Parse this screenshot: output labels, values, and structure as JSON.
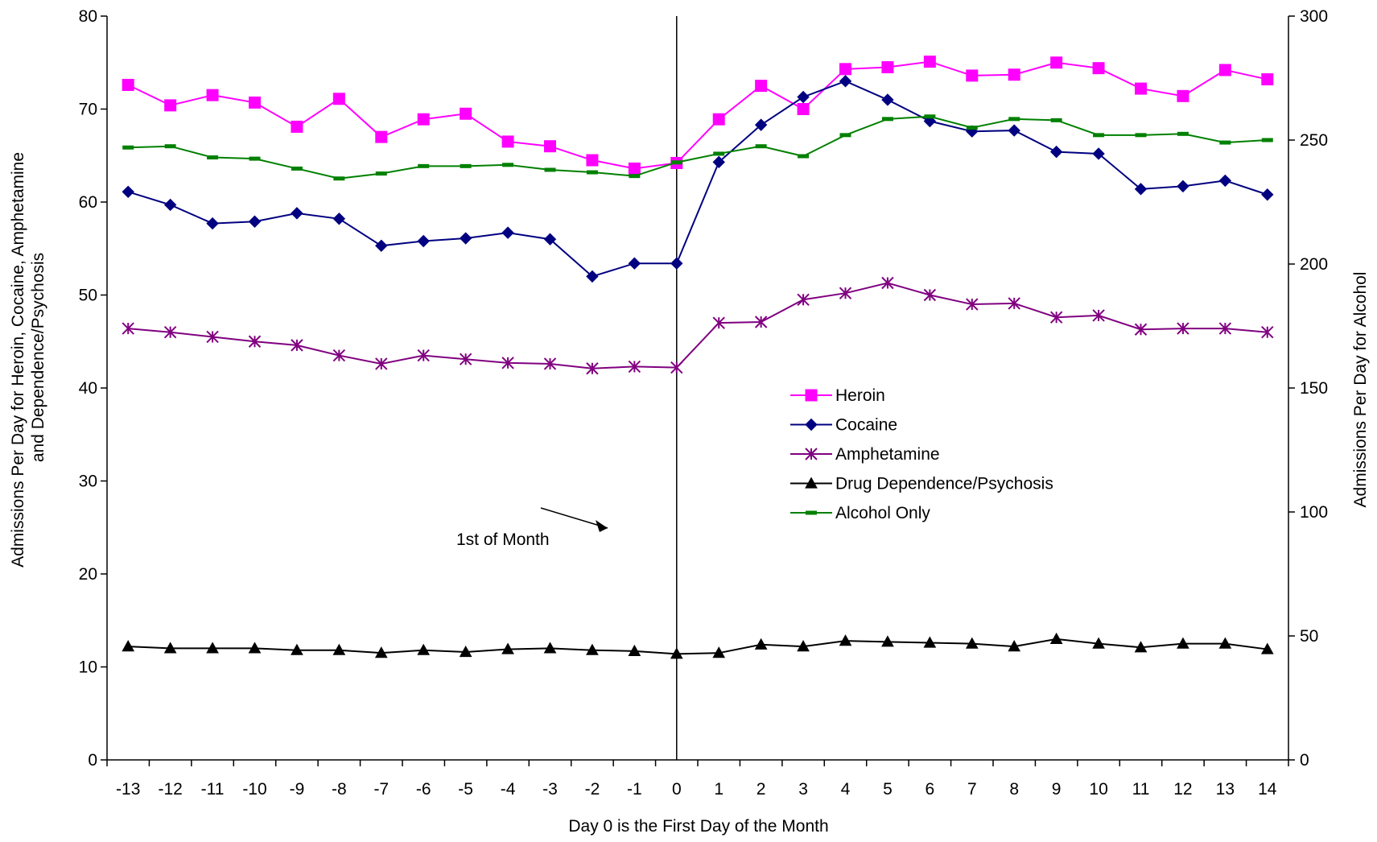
{
  "chart_data": {
    "type": "line",
    "x": [
      -13,
      -12,
      -11,
      -10,
      -9,
      -8,
      -7,
      -6,
      -5,
      -4,
      -3,
      -2,
      -1,
      0,
      1,
      2,
      3,
      4,
      5,
      6,
      7,
      8,
      9,
      10,
      11,
      12,
      13,
      14
    ],
    "x_tick_labels": [
      "-13",
      "-12",
      "-11",
      "-10",
      "-9",
      "-8",
      "-7",
      "-6",
      "-5",
      "-4",
      "-3",
      "-2",
      "-1",
      "0",
      "1",
      "2",
      "3",
      "4",
      "5",
      "6",
      "7",
      "8",
      "9",
      "10",
      "11",
      "12",
      "13",
      "14"
    ],
    "xlabel": "Day 0 is the First Day of the Month",
    "ylabel_left": "Admissions Per Day for Heroin, Cocaine, Amphetamine and Dependence/Psychosis",
    "ylabel_left_lines": [
      "Admissions Per Day for Heroin, Cocaine, Amphetamine",
      "and Dependence/Psychosis"
    ],
    "ylabel_right": "Admissions Per Day for Alcohol",
    "ylim_left": [
      0,
      80
    ],
    "ylim_right": [
      0,
      300
    ],
    "yticks_left": [
      "0",
      "10",
      "20",
      "30",
      "40",
      "50",
      "60",
      "70",
      "80"
    ],
    "yticks_right": [
      "0",
      "50",
      "100",
      "150",
      "200",
      "250",
      "300"
    ],
    "grid": false,
    "legend_position": "center-right",
    "annotation": {
      "text": "1st of Month",
      "points_to_x": 0
    },
    "vertical_marker_x": 0,
    "series": [
      {
        "name": "Heroin",
        "axis": "left",
        "color": "#ff00ff",
        "marker": "square",
        "values": [
          72.6,
          70.4,
          71.5,
          70.7,
          68.1,
          71.1,
          67.0,
          68.9,
          69.5,
          66.5,
          66.0,
          64.5,
          63.6,
          64.2,
          68.9,
          72.5,
          70.0,
          74.3,
          74.5,
          75.1,
          73.6,
          73.7,
          75.0,
          74.4,
          72.2,
          71.4,
          74.2,
          73.2
        ]
      },
      {
        "name": "Cocaine",
        "axis": "left",
        "color": "#000080",
        "marker": "diamond",
        "values": [
          61.1,
          59.7,
          57.7,
          57.9,
          58.8,
          58.2,
          55.3,
          55.8,
          56.1,
          56.7,
          56.0,
          52.0,
          53.4,
          53.4,
          64.3,
          68.3,
          71.3,
          73.0,
          71.0,
          68.7,
          67.6,
          67.7,
          65.4,
          65.2,
          61.4,
          61.7,
          62.3,
          60.8
        ]
      },
      {
        "name": "Amphetamine",
        "axis": "left",
        "color": "#800080",
        "marker": "star",
        "values": [
          46.4,
          46.0,
          45.5,
          45.0,
          44.6,
          43.5,
          42.6,
          43.5,
          43.1,
          42.7,
          42.6,
          42.1,
          42.3,
          42.2,
          47.0,
          47.1,
          49.5,
          50.2,
          51.3,
          50.0,
          49.0,
          49.1,
          47.6,
          47.8,
          46.3,
          46.4,
          46.4,
          46.0
        ]
      },
      {
        "name": "Drug Dependence/Psychosis",
        "axis": "left",
        "color": "#000000",
        "marker": "triangle",
        "values": [
          12.2,
          12.0,
          12.0,
          12.0,
          11.8,
          11.8,
          11.5,
          11.8,
          11.6,
          11.9,
          12.0,
          11.8,
          11.7,
          11.4,
          11.5,
          12.4,
          12.2,
          12.8,
          12.7,
          12.6,
          12.5,
          12.2,
          13.0,
          12.5,
          12.1,
          12.5,
          12.5,
          11.9
        ]
      },
      {
        "name": "Alcohol Only",
        "axis": "right",
        "color": "#008000",
        "marker": "dash",
        "values": [
          247,
          247.5,
          243,
          242.5,
          238.5,
          234.5,
          236.5,
          239.5,
          239.5,
          240,
          238,
          237,
          235.5,
          241,
          244.5,
          247.5,
          243.5,
          252,
          258.5,
          259.5,
          255,
          258.5,
          258,
          252,
          252,
          252.5,
          249,
          250
        ]
      }
    ]
  }
}
